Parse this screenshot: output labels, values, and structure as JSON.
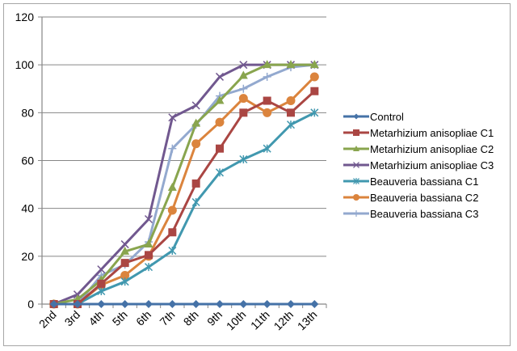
{
  "chart_data": {
    "type": "line",
    "title": "",
    "xlabel": "",
    "ylabel": "",
    "ylim": [
      0,
      120
    ],
    "yticks": [
      "0",
      "20",
      "40",
      "60",
      "80",
      "100",
      "120"
    ],
    "grid": true,
    "legend_position": "right",
    "categories": [
      "2nd",
      "3rd",
      "4th",
      "5th",
      "6th",
      "7th",
      "8th",
      "9th",
      "10th",
      "11th",
      "12th",
      "13th"
    ],
    "series": [
      {
        "name": "Control",
        "color": "#4572A7",
        "marker": "diamond",
        "values": [
          0,
          0,
          0,
          0,
          0,
          0,
          0,
          0,
          0,
          0,
          0,
          0
        ]
      },
      {
        "name": "Metarhizium anisopliae C1",
        "color": "#AA4643",
        "marker": "square",
        "values": [
          0,
          0,
          8.5,
          17.2,
          20.5,
          30,
          50.4,
          65,
          80,
          85,
          80,
          89
        ]
      },
      {
        "name": "Metarhizium anisopliae C2",
        "color": "#89A54E",
        "marker": "triangle",
        "values": [
          0,
          2,
          10,
          22,
          25,
          48.7,
          75.5,
          85,
          95.5,
          100,
          100,
          100
        ]
      },
      {
        "name": "Metarhizium anisopliae C3",
        "color": "#71588F",
        "marker": "x",
        "values": [
          0,
          4,
          14.5,
          25,
          35.5,
          78,
          83,
          95,
          100,
          100,
          100,
          100
        ]
      },
      {
        "name": "Beauveria bassiana C1",
        "color": "#4198AF",
        "marker": "star",
        "values": [
          0,
          0,
          5.4,
          9.4,
          15.5,
          22.3,
          42.6,
          55,
          60.5,
          65,
          75,
          80
        ]
      },
      {
        "name": "Beauveria bassiana C2",
        "color": "#DB843D",
        "marker": "circle",
        "values": [
          0,
          0,
          8,
          12,
          20,
          39.2,
          67,
          76,
          86,
          80,
          85,
          95
        ]
      },
      {
        "name": "Beauveria bassiana C3",
        "color": "#93A9CF",
        "marker": "plus",
        "values": [
          0,
          0,
          12,
          16.5,
          26,
          65,
          75,
          87,
          90,
          95,
          99,
          100
        ]
      }
    ]
  }
}
